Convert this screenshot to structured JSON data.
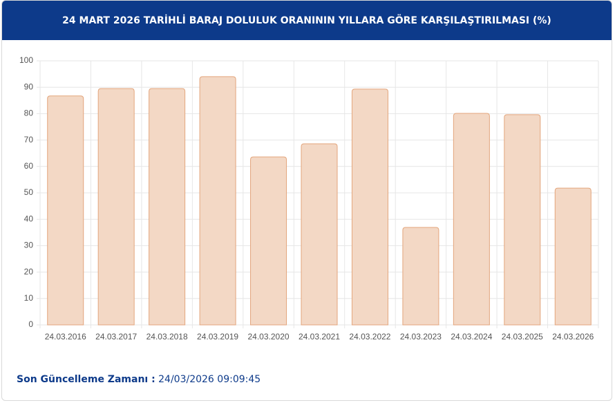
{
  "chart_data": {
    "type": "bar",
    "title": "24 MART 2026 TARİHLİ BARAJ DOLULUK ORANININ YILLARA GÖRE KARŞILAŞTIRILMASI (%)",
    "categories": [
      "24.03.2016",
      "24.03.2017",
      "24.03.2018",
      "24.03.2019",
      "24.03.2020",
      "24.03.2021",
      "24.03.2022",
      "24.03.2023",
      "24.03.2024",
      "24.03.2025",
      "24.03.2026"
    ],
    "values": [
      86.7,
      89.5,
      89.5,
      94.0,
      63.6,
      68.6,
      89.3,
      36.9,
      80.1,
      79.6,
      51.8
    ],
    "color": "#f3d8c5",
    "ylim": [
      0,
      100
    ],
    "yticks": [
      0,
      10,
      20,
      30,
      40,
      50,
      60,
      70,
      80,
      90,
      100
    ],
    "grid": true
  },
  "footer": {
    "label": "Son Güncelleme Zamanı :",
    "value": "24/03/2026 09:09:45"
  }
}
